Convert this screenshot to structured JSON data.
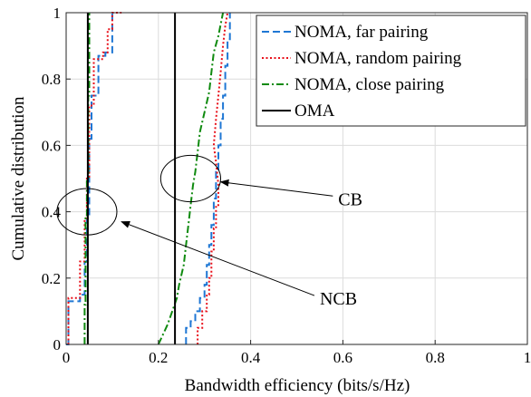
{
  "chart_data": {
    "type": "line",
    "xlabel": "Bandwidth efficiency (bits/s/Hz)",
    "ylabel": "Cumulative distribution",
    "xlim": [
      0,
      1
    ],
    "ylim": [
      0,
      1
    ],
    "xticks": [
      "0",
      "0.2",
      "0.4",
      "0.6",
      "0.8",
      "1"
    ],
    "yticks": [
      "0",
      "0.2",
      "0.4",
      "0.6",
      "0.8",
      "1"
    ],
    "grid": true,
    "legend_position": "top-right",
    "series": [
      {
        "name": "NOMA, far pairing",
        "color": "#1f77d4",
        "dash": "dashed",
        "groups": [
          [
            [
              0,
              0
            ],
            [
              0.005,
              0
            ],
            [
              0.005,
              0.13
            ],
            [
              0.03,
              0.13
            ],
            [
              0.03,
              0.15
            ],
            [
              0.04,
              0.15
            ],
            [
              0.04,
              0.25
            ],
            [
              0.045,
              0.25
            ],
            [
              0.045,
              0.38
            ],
            [
              0.05,
              0.38
            ],
            [
              0.05,
              0.62
            ],
            [
              0.055,
              0.62
            ],
            [
              0.055,
              0.75
            ],
            [
              0.07,
              0.75
            ],
            [
              0.07,
              0.87
            ],
            [
              0.085,
              0.87
            ],
            [
              0.085,
              0.88
            ],
            [
              0.1,
              0.88
            ],
            [
              0.1,
              1
            ]
          ],
          [
            [
              0.26,
              0
            ],
            [
              0.26,
              0.05
            ],
            [
              0.27,
              0.05
            ],
            [
              0.27,
              0.07
            ],
            [
              0.28,
              0.07
            ],
            [
              0.28,
              0.1
            ],
            [
              0.29,
              0.1
            ],
            [
              0.29,
              0.14
            ],
            [
              0.3,
              0.14
            ],
            [
              0.3,
              0.18
            ],
            [
              0.305,
              0.18
            ],
            [
              0.305,
              0.24
            ],
            [
              0.31,
              0.24
            ],
            [
              0.31,
              0.3
            ],
            [
              0.315,
              0.3
            ],
            [
              0.315,
              0.36
            ],
            [
              0.32,
              0.36
            ],
            [
              0.32,
              0.44
            ],
            [
              0.325,
              0.44
            ],
            [
              0.325,
              0.52
            ],
            [
              0.33,
              0.52
            ],
            [
              0.33,
              0.6
            ],
            [
              0.335,
              0.6
            ],
            [
              0.335,
              0.68
            ],
            [
              0.34,
              0.68
            ],
            [
              0.34,
              0.75
            ],
            [
              0.345,
              0.75
            ],
            [
              0.345,
              0.84
            ],
            [
              0.35,
              0.84
            ],
            [
              0.35,
              0.92
            ],
            [
              0.355,
              0.92
            ],
            [
              0.355,
              1
            ]
          ]
        ]
      },
      {
        "name": "NOMA, random pairing",
        "color": "#e8101a",
        "dash": "dotted",
        "groups": [
          [
            [
              0.005,
              0
            ],
            [
              0.005,
              0.14
            ],
            [
              0.03,
              0.14
            ],
            [
              0.03,
              0.25
            ],
            [
              0.04,
              0.25
            ],
            [
              0.04,
              0.38
            ],
            [
              0.045,
              0.38
            ],
            [
              0.045,
              0.5
            ],
            [
              0.05,
              0.5
            ],
            [
              0.05,
              0.72
            ],
            [
              0.06,
              0.72
            ],
            [
              0.06,
              0.86
            ],
            [
              0.08,
              0.86
            ],
            [
              0.08,
              0.88
            ],
            [
              0.09,
              0.88
            ],
            [
              0.09,
              0.95
            ],
            [
              0.1,
              0.95
            ],
            [
              0.1,
              1
            ],
            [
              0.12,
              1
            ]
          ],
          [
            [
              0.285,
              0
            ],
            [
              0.285,
              0.05
            ],
            [
              0.295,
              0.05
            ],
            [
              0.295,
              0.1
            ],
            [
              0.305,
              0.1
            ],
            [
              0.305,
              0.15
            ],
            [
              0.31,
              0.15
            ],
            [
              0.31,
              0.2
            ],
            [
              0.315,
              0.2
            ],
            [
              0.315,
              0.28
            ],
            [
              0.32,
              0.28
            ],
            [
              0.32,
              0.35
            ],
            [
              0.325,
              0.35
            ],
            [
              0.325,
              0.42
            ],
            [
              0.33,
              0.42
            ],
            [
              0.33,
              0.48
            ],
            [
              0.325,
              0.55
            ],
            [
              0.32,
              0.6
            ],
            [
              0.325,
              0.68
            ],
            [
              0.33,
              0.75
            ],
            [
              0.335,
              0.82
            ],
            [
              0.34,
              0.9
            ],
            [
              0.345,
              0.96
            ],
            [
              0.35,
              1
            ]
          ]
        ]
      },
      {
        "name": "NOMA, close pairing",
        "color": "#0f8a0f",
        "dash": "dashdot",
        "groups": [
          [
            [
              0.04,
              0
            ],
            [
              0.04,
              0.12
            ],
            [
              0.042,
              0.12
            ],
            [
              0.042,
              0.38
            ],
            [
              0.045,
              0.38
            ],
            [
              0.045,
              0.5
            ],
            [
              0.048,
              0.5
            ],
            [
              0.048,
              0.75
            ],
            [
              0.05,
              0.75
            ],
            [
              0.05,
              1
            ]
          ],
          [
            [
              0.2,
              0
            ],
            [
              0.21,
              0.03
            ],
            [
              0.22,
              0.06
            ],
            [
              0.23,
              0.1
            ],
            [
              0.24,
              0.14
            ],
            [
              0.245,
              0.18
            ],
            [
              0.255,
              0.24
            ],
            [
              0.26,
              0.3
            ],
            [
              0.265,
              0.36
            ],
            [
              0.27,
              0.42
            ],
            [
              0.275,
              0.48
            ],
            [
              0.28,
              0.52
            ],
            [
              0.285,
              0.58
            ],
            [
              0.29,
              0.64
            ],
            [
              0.3,
              0.7
            ],
            [
              0.31,
              0.76
            ],
            [
              0.315,
              0.82
            ],
            [
              0.32,
              0.88
            ],
            [
              0.33,
              0.93
            ],
            [
              0.34,
              1
            ]
          ]
        ]
      },
      {
        "name": "OMA",
        "color": "#000000",
        "dash": "solid",
        "groups": [
          [
            [
              0.047,
              0
            ],
            [
              0.047,
              1
            ]
          ],
          [
            [
              0.236,
              0
            ],
            [
              0.236,
              1
            ]
          ]
        ]
      }
    ],
    "annotations": [
      {
        "text": "CB",
        "ellipse_center": [
          0.27,
          0.5
        ],
        "ellipse_radius": [
          0.065,
          0.07
        ],
        "label_at": [
          0.59,
          0.42
        ],
        "arrow_to": [
          0.335,
          0.49
        ]
      },
      {
        "text": "NCB",
        "ellipse_center": [
          0.045,
          0.4
        ],
        "ellipse_radius": [
          0.065,
          0.07
        ],
        "label_at": [
          0.55,
          0.12
        ],
        "arrow_to": [
          0.12,
          0.37
        ]
      }
    ]
  }
}
